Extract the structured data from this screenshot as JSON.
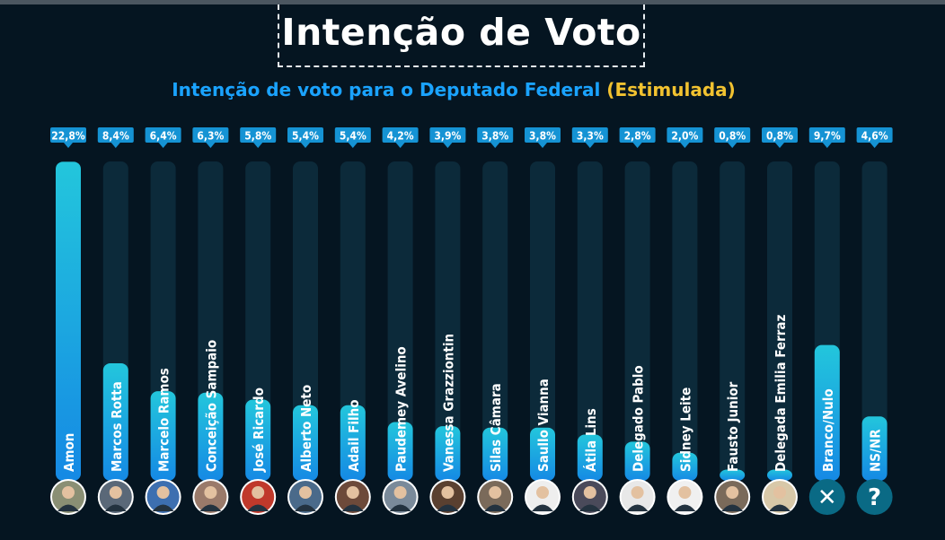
{
  "title": "Intenção de Voto",
  "subtitle": {
    "main": "Intenção de voto para o Deputado Federal",
    "accent": "(Estimulada)"
  },
  "colors": {
    "background": "#051521",
    "track": "#0c2a3a",
    "bar_top": "#23c6dc",
    "bar_bottom": "#1589e4",
    "label_box": "#1593d4",
    "subtitle": "#1aa3ff",
    "accent": "#f2c230"
  },
  "chart_data": {
    "type": "bar",
    "orientation": "vertical",
    "ylim": [
      0,
      25
    ],
    "grid": false,
    "categories": [
      "Amon",
      "Marcos Rotta",
      "Marcelo Ramos",
      "Conceição Sampaio",
      "José Ricardo",
      "Alberto Neto",
      "Adail Filho",
      "Paudemey Avelino",
      "Vanessa Grazziontin",
      "Silas Câmara",
      "Saullo Vianna",
      "Átila Lins",
      "Delegado Pablo",
      "Sidney Leite",
      "Fausto Junior",
      "Delegada Emilia Ferraz",
      "Branco/Nulo",
      "NS/NR"
    ],
    "values": [
      22.8,
      8.4,
      6.4,
      6.3,
      5.8,
      5.4,
      5.4,
      4.2,
      3.9,
      3.8,
      3.8,
      3.3,
      2.8,
      2.0,
      0.8,
      0.8,
      9.7,
      4.6
    ],
    "value_labels": [
      "22,8%",
      "8,4%",
      "6,4%",
      "6,3%",
      "5,8%",
      "5,4%",
      "5,4%",
      "4,2%",
      "3,9%",
      "3,8%",
      "3,8%",
      "3,3%",
      "2,8%",
      "2,0%",
      "0,8%",
      "0,8%",
      "9,7%",
      "4,6%"
    ]
  },
  "avatars": [
    {
      "kind": "photo",
      "icon": "person-avatar-icon",
      "color": "#8a8f74"
    },
    {
      "kind": "photo",
      "icon": "person-avatar-icon",
      "color": "#5a6878"
    },
    {
      "kind": "photo",
      "icon": "person-avatar-icon",
      "color": "#3d6fb0"
    },
    {
      "kind": "photo",
      "icon": "person-avatar-icon",
      "color": "#9a7a6a"
    },
    {
      "kind": "photo",
      "icon": "person-avatar-icon",
      "color": "#c0392b"
    },
    {
      "kind": "photo",
      "icon": "person-avatar-icon",
      "color": "#4a6a8a"
    },
    {
      "kind": "photo",
      "icon": "person-avatar-icon",
      "color": "#6d4a3a"
    },
    {
      "kind": "photo",
      "icon": "person-avatar-icon",
      "color": "#7a8a9a"
    },
    {
      "kind": "photo",
      "icon": "person-avatar-icon",
      "color": "#5a4030"
    },
    {
      "kind": "photo",
      "icon": "person-avatar-icon",
      "color": "#7a6a5a"
    },
    {
      "kind": "photo",
      "icon": "person-avatar-icon",
      "color": "#eeeeee"
    },
    {
      "kind": "photo",
      "icon": "person-avatar-icon",
      "color": "#4a4a5a"
    },
    {
      "kind": "photo",
      "icon": "person-avatar-icon",
      "color": "#e8e8e8"
    },
    {
      "kind": "photo",
      "icon": "person-avatar-icon",
      "color": "#f0f0f0"
    },
    {
      "kind": "photo",
      "icon": "person-avatar-icon",
      "color": "#7a6a5a"
    },
    {
      "kind": "photo",
      "icon": "person-avatar-icon",
      "color": "#d8c8a8"
    },
    {
      "kind": "symbol",
      "icon": "x-mark-icon",
      "glyph": "✕",
      "color": "#0a6a85"
    },
    {
      "kind": "symbol",
      "icon": "question-mark-icon",
      "glyph": "?",
      "color": "#0a6a85"
    }
  ]
}
